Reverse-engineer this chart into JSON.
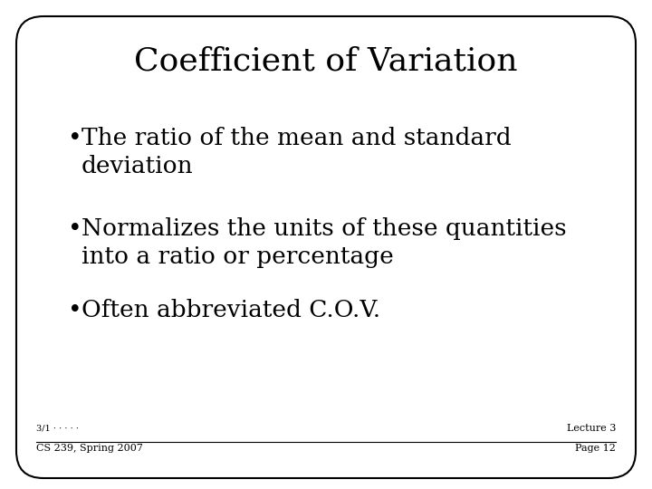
{
  "title": "Coefficient of Variation",
  "bullets": [
    "The ratio of the mean and standard\ndeviation",
    "Normalizes the units of these quantities\ninto a ratio or percentage",
    "Often abbreviated C.O.V."
  ],
  "footer_left_small": "3/1 · · · · ·",
  "footer_left": "CS 239, Spring 2007",
  "footer_right_line1": "Lecture 3",
  "footer_right_line2": "Page 12",
  "bg_color": "#ffffff",
  "border_color": "#000000",
  "text_color": "#000000",
  "title_fontsize": 26,
  "bullet_fontsize": 19,
  "footer_fontsize": 8
}
